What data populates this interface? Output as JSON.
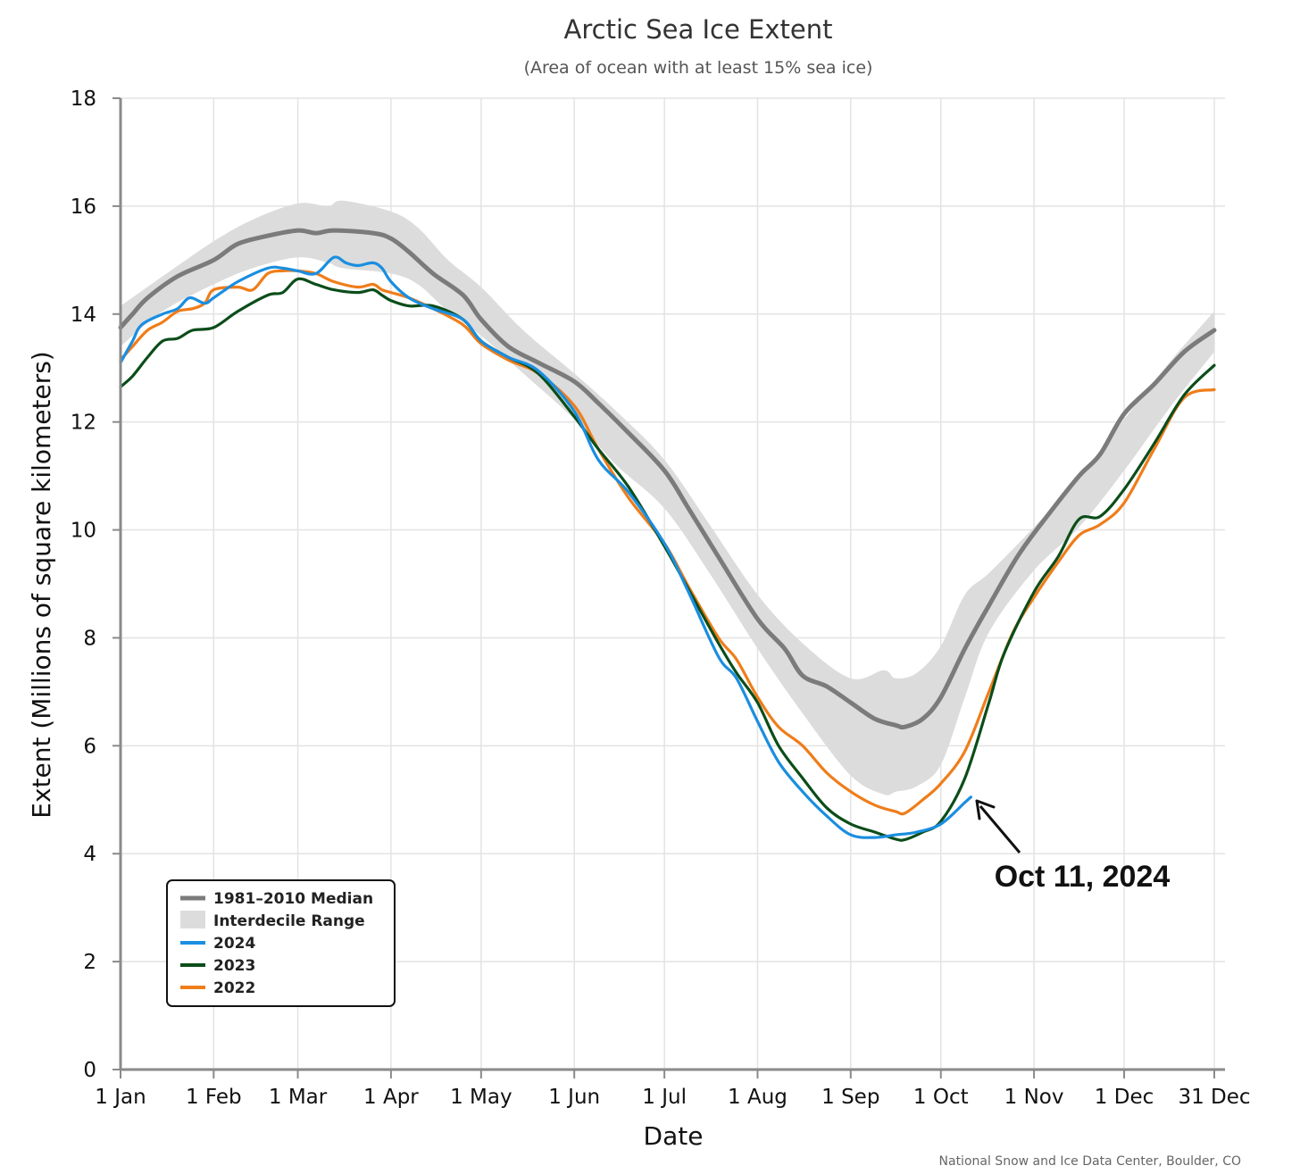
{
  "chart_data": {
    "type": "line",
    "title": "Arctic Sea Ice Extent",
    "subtitle": "(Area of ocean with at least 15% sea ice)",
    "xlabel": "Date",
    "ylabel": "Extent (Millions of square kilometers)",
    "xlim": [
      1,
      365
    ],
    "ylim": [
      0,
      18
    ],
    "yticks": [
      0,
      2,
      4,
      6,
      8,
      10,
      12,
      14,
      16,
      18
    ],
    "xticks": [
      {
        "label": "1 Jan",
        "day": 1
      },
      {
        "label": "1 Feb",
        "day": 32
      },
      {
        "label": "1 Mar",
        "day": 60
      },
      {
        "label": "1 Apr",
        "day": 91
      },
      {
        "label": "1 May",
        "day": 121
      },
      {
        "label": "1 Jun",
        "day": 152
      },
      {
        "label": "1 Jul",
        "day": 182
      },
      {
        "label": "1 Aug",
        "day": 213
      },
      {
        "label": "1 Sep",
        "day": 244
      },
      {
        "label": "1 Oct",
        "day": 274
      },
      {
        "label": "1 Nov",
        "day": 305
      },
      {
        "label": "1 Dec",
        "day": 335
      },
      {
        "label": "31 Dec",
        "day": 365
      }
    ],
    "grid": true,
    "legend_position": "bottom-left",
    "credit": "National Snow and Ice Data Center, Boulder, CO",
    "annotation": {
      "text": "Oct 11, 2024",
      "day": 284,
      "value": 5.05
    },
    "band": {
      "name": "Interdecile Range",
      "color": "#dcdcdc",
      "x": [
        1,
        15,
        32,
        45,
        60,
        70,
        75,
        91,
        100,
        110,
        121,
        135,
        152,
        166,
        182,
        197,
        213,
        228,
        244,
        255,
        259,
        266,
        274,
        282,
        290,
        305,
        320,
        335,
        350,
        365
      ],
      "upper": [
        14.15,
        14.7,
        15.35,
        15.75,
        16.05,
        16.0,
        16.1,
        15.9,
        15.6,
        15.0,
        14.5,
        13.7,
        12.9,
        12.2,
        11.3,
        10.1,
        8.8,
        7.9,
        7.25,
        7.4,
        7.25,
        7.35,
        7.85,
        8.8,
        9.2,
        10.05,
        10.95,
        12.05,
        13.1,
        14.05
      ],
      "lower": [
        13.4,
        14.05,
        14.55,
        14.85,
        15.05,
        14.95,
        14.85,
        14.75,
        14.55,
        14.05,
        13.6,
        12.9,
        12.05,
        11.2,
        10.4,
        9.2,
        7.8,
        6.6,
        5.45,
        5.1,
        5.15,
        5.25,
        5.65,
        6.9,
        8.1,
        9.25,
        10.05,
        11.1,
        12.25,
        13.3
      ]
    },
    "series": [
      {
        "name": "1981–2010 Median",
        "color": "#7b7b7b",
        "x": [
          1,
          5,
          10,
          20,
          32,
          40,
          50,
          60,
          66,
          72,
          85,
          91,
          97,
          105,
          115,
          121,
          130,
          140,
          152,
          160,
          170,
          182,
          190,
          200,
          213,
          222,
          228,
          236,
          244,
          252,
          259,
          262,
          268,
          274,
          282,
          290,
          300,
          310,
          320,
          327,
          335,
          345,
          355,
          365
        ],
        "values": [
          13.75,
          14.0,
          14.3,
          14.7,
          15.0,
          15.3,
          15.45,
          15.55,
          15.5,
          15.55,
          15.5,
          15.4,
          15.15,
          14.75,
          14.35,
          13.9,
          13.4,
          13.1,
          12.75,
          12.35,
          11.8,
          11.1,
          10.4,
          9.5,
          8.35,
          7.8,
          7.3,
          7.1,
          6.8,
          6.5,
          6.38,
          6.35,
          6.5,
          6.9,
          7.8,
          8.6,
          9.55,
          10.3,
          11.0,
          11.4,
          12.15,
          12.7,
          13.3,
          13.7
        ]
      },
      {
        "name": "2024",
        "color": "#1a8ee0",
        "x": [
          1,
          5,
          8,
          15,
          20,
          24,
          29,
          32,
          40,
          50,
          55,
          60,
          66,
          72,
          76,
          80,
          85,
          88,
          91,
          97,
          105,
          115,
          121,
          130,
          140,
          152,
          160,
          170,
          182,
          190,
          200,
          206,
          213,
          220,
          228,
          236,
          244,
          252,
          259,
          266,
          274,
          282,
          284
        ],
        "values": [
          13.1,
          13.5,
          13.8,
          14.0,
          14.1,
          14.3,
          14.2,
          14.3,
          14.6,
          14.85,
          14.85,
          14.8,
          14.75,
          15.05,
          14.95,
          14.9,
          14.95,
          14.85,
          14.6,
          14.3,
          14.1,
          13.9,
          13.5,
          13.2,
          12.95,
          12.2,
          11.3,
          10.7,
          9.75,
          8.85,
          7.65,
          7.25,
          6.45,
          5.7,
          5.15,
          4.7,
          4.35,
          4.3,
          4.35,
          4.4,
          4.55,
          4.95,
          5.05
        ]
      },
      {
        "name": "2023",
        "color": "#0b4d1a",
        "x": [
          1,
          5,
          10,
          15,
          20,
          25,
          32,
          40,
          50,
          55,
          60,
          66,
          72,
          80,
          85,
          88,
          91,
          97,
          105,
          115,
          121,
          130,
          140,
          152,
          160,
          170,
          182,
          190,
          200,
          206,
          213,
          220,
          228,
          236,
          244,
          252,
          259,
          262,
          268,
          274,
          282,
          290,
          295,
          305,
          313,
          320,
          327,
          335,
          345,
          355,
          365
        ],
        "values": [
          12.65,
          12.85,
          13.2,
          13.5,
          13.55,
          13.7,
          13.75,
          14.05,
          14.35,
          14.4,
          14.65,
          14.55,
          14.45,
          14.4,
          14.45,
          14.35,
          14.25,
          14.15,
          14.15,
          13.9,
          13.5,
          13.2,
          12.9,
          12.1,
          11.5,
          10.8,
          9.7,
          8.9,
          7.9,
          7.35,
          6.8,
          6.0,
          5.4,
          4.85,
          4.55,
          4.4,
          4.27,
          4.26,
          4.4,
          4.6,
          5.4,
          6.8,
          7.7,
          8.85,
          9.5,
          10.2,
          10.25,
          10.75,
          11.6,
          12.5,
          13.05
        ]
      },
      {
        "name": "2022",
        "color": "#ef7d1a",
        "x": [
          1,
          5,
          10,
          15,
          20,
          25,
          29,
          32,
          40,
          45,
          50,
          55,
          60,
          66,
          72,
          80,
          85,
          88,
          91,
          97,
          105,
          115,
          121,
          130,
          140,
          152,
          160,
          170,
          182,
          190,
          200,
          206,
          213,
          220,
          228,
          236,
          244,
          252,
          259,
          262,
          268,
          274,
          282,
          290,
          298,
          305,
          313,
          320,
          327,
          335,
          345,
          355,
          365
        ],
        "values": [
          13.15,
          13.4,
          13.7,
          13.85,
          14.05,
          14.1,
          14.2,
          14.45,
          14.5,
          14.45,
          14.75,
          14.8,
          14.8,
          14.75,
          14.6,
          14.5,
          14.55,
          14.45,
          14.4,
          14.3,
          14.1,
          13.8,
          13.45,
          13.15,
          12.9,
          12.3,
          11.5,
          10.6,
          9.75,
          8.95,
          8.0,
          7.6,
          6.9,
          6.35,
          6.0,
          5.5,
          5.15,
          4.9,
          4.78,
          4.75,
          5.0,
          5.3,
          5.9,
          7.0,
          8.1,
          8.75,
          9.4,
          9.9,
          10.1,
          10.5,
          11.5,
          12.45,
          12.6
        ]
      }
    ]
  }
}
